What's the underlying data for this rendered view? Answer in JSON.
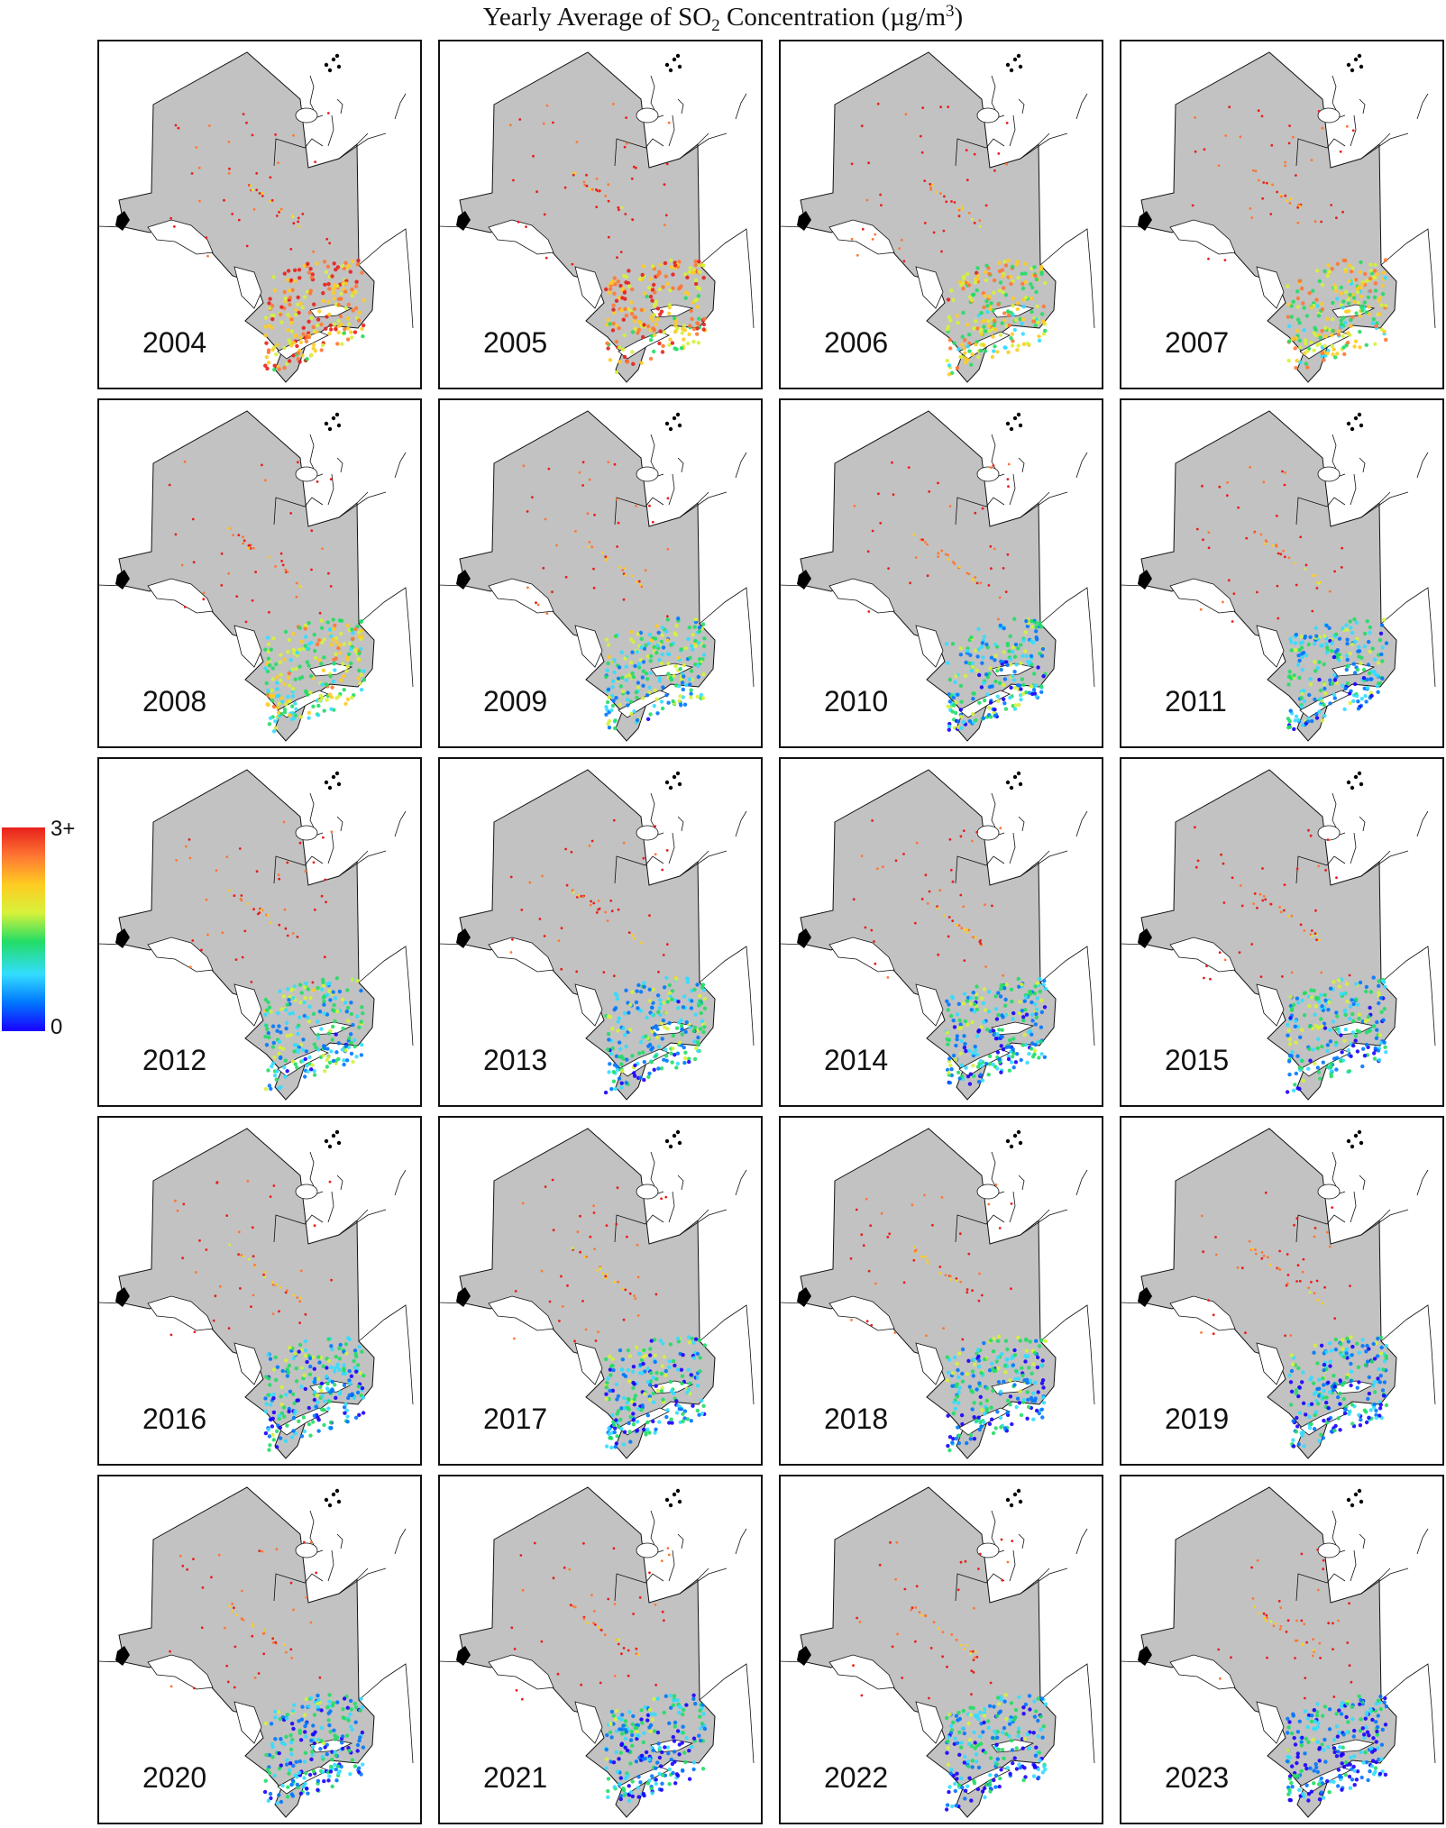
{
  "title": {
    "prefix": "Yearly Average of SO",
    "sub": "2",
    "middle": " Concentration (µg/m",
    "sup": "3",
    "suffix": ")"
  },
  "legend": {
    "max_label": "3+",
    "min_label": "0",
    "colors": [
      "#1a00ff",
      "#0077ff",
      "#33ddff",
      "#22dd66",
      "#d6f23a",
      "#ffcc22",
      "#ff7733",
      "#e8201c"
    ]
  },
  "colors": {
    "land": "#c2c2c2",
    "lakes": "#ffffff",
    "outline": "#111111"
  },
  "panels": [
    {
      "year": "2004"
    },
    {
      "year": "2005"
    },
    {
      "year": "2006"
    },
    {
      "year": "2007"
    },
    {
      "year": "2008"
    },
    {
      "year": "2009"
    },
    {
      "year": "2010"
    },
    {
      "year": "2011"
    },
    {
      "year": "2012"
    },
    {
      "year": "2013"
    },
    {
      "year": "2014"
    },
    {
      "year": "2015"
    },
    {
      "year": "2016"
    },
    {
      "year": "2017"
    },
    {
      "year": "2018"
    },
    {
      "year": "2019"
    },
    {
      "year": "2020"
    },
    {
      "year": "2021"
    },
    {
      "year": "2022"
    },
    {
      "year": "2023"
    }
  ],
  "intensity_by_year": [
    0.95,
    0.9,
    0.75,
    0.7,
    0.65,
    0.45,
    0.4,
    0.38,
    0.42,
    0.4,
    0.38,
    0.36,
    0.35,
    0.33,
    0.32,
    0.3,
    0.3,
    0.3,
    0.28,
    0.26
  ]
}
